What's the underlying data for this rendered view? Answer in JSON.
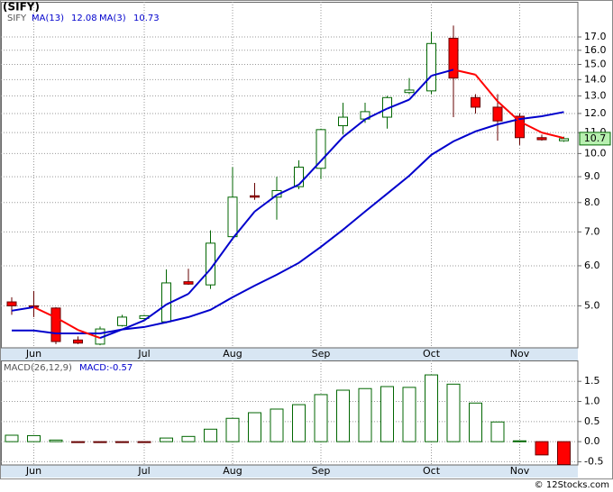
{
  "title": "(SIFY)",
  "credit": "© 12Stocks.com",
  "chart_data": [
    {
      "type": "candlestick",
      "name": "SIFY",
      "categories": [
        null,
        "Jun",
        null,
        null,
        null,
        null,
        "Jul",
        null,
        null,
        null,
        "Aug",
        null,
        null,
        null,
        "Sep",
        null,
        null,
        null,
        null,
        "Oct",
        null,
        null,
        null,
        "Nov",
        null,
        null
      ],
      "open": [
        5.09,
        5.0,
        4.95,
        4.28,
        4.2,
        4.57,
        4.72,
        4.65,
        5.58,
        5.5,
        6.85,
        8.25,
        8.2,
        8.6,
        9.35,
        11.35,
        11.7,
        11.8,
        13.2,
        13.3,
        16.9,
        12.9,
        12.35,
        11.85,
        10.75,
        10.6
      ],
      "high": [
        5.2,
        5.35,
        4.97,
        4.35,
        4.55,
        4.8,
        4.8,
        5.9,
        5.92,
        7.05,
        9.4,
        8.75,
        9.0,
        9.7,
        11.2,
        12.6,
        12.6,
        13.0,
        14.1,
        17.4,
        17.9,
        13.1,
        13.1,
        12.0,
        10.9,
        10.8
      ],
      "low": [
        4.8,
        4.75,
        4.2,
        4.2,
        4.18,
        4.55,
        4.7,
        4.62,
        5.5,
        5.4,
        6.8,
        8.1,
        7.4,
        8.5,
        8.9,
        10.9,
        11.5,
        11.2,
        13.1,
        13.1,
        11.8,
        12.0,
        10.6,
        10.4,
        10.6,
        10.55
      ],
      "close": [
        5.0,
        4.98,
        4.25,
        4.22,
        4.5,
        4.75,
        4.78,
        5.55,
        5.52,
        6.65,
        8.2,
        8.2,
        8.45,
        9.4,
        11.15,
        11.8,
        12.1,
        12.9,
        13.35,
        16.5,
        14.1,
        12.35,
        11.6,
        10.75,
        10.65,
        10.7
      ],
      "up_color": "#ffffff",
      "up_edge": "#006600",
      "down_color": "#ff0000",
      "down_edge": "#660000",
      "series": [
        {
          "name": "MA(13)",
          "color": "#0000cc",
          "values": [
            4.47,
            4.47,
            4.41,
            4.41,
            4.41,
            4.49,
            4.54,
            4.64,
            4.75,
            4.91,
            5.2,
            5.48,
            5.76,
            6.08,
            6.54,
            7.07,
            7.68,
            8.33,
            9.04,
            9.94,
            10.57,
            11.06,
            11.42,
            11.7,
            11.85,
            12.08
          ]
        },
        {
          "name": "MA(3)",
          "up_color": "#0000cc",
          "down_color": "#ff0000",
          "values": [
            4.89,
            4.97,
            4.74,
            4.48,
            4.32,
            4.49,
            4.68,
            5.03,
            5.28,
            5.91,
            6.79,
            7.68,
            8.28,
            8.68,
            9.67,
            10.78,
            11.68,
            12.27,
            12.78,
            14.25,
            14.65,
            14.32,
            12.68,
            11.57,
            11.0,
            10.73
          ]
        }
      ],
      "log_scale": true,
      "grid": true,
      "ylim": [
        4.13,
        19.95
      ],
      "yticks": [
        {
          "value": 5,
          "label": "5.0"
        },
        {
          "value": 6,
          "label": "6.0"
        },
        {
          "value": 7,
          "label": "7.0"
        },
        {
          "value": 8,
          "label": "8.0"
        },
        {
          "value": 9,
          "label": "9.0"
        },
        {
          "value": 10,
          "label": "10.0"
        },
        {
          "value": 11,
          "label": "11.0"
        },
        {
          "value": 12,
          "label": "12.0"
        },
        {
          "value": 13,
          "label": "13.0"
        },
        {
          "value": 14,
          "label": "14.0"
        },
        {
          "value": 15,
          "label": "15.0"
        },
        {
          "value": 16,
          "label": "16.0"
        },
        {
          "value": 17,
          "label": "17.0"
        }
      ]
    },
    {
      "type": "bar",
      "name": "MACD(26,12,9)",
      "value_name": "MACD:",
      "values": [
        0.16,
        0.15,
        0.04,
        -0.02,
        -0.02,
        -0.02,
        -0.02,
        0.09,
        0.13,
        0.31,
        0.58,
        0.72,
        0.81,
        0.92,
        1.17,
        1.28,
        1.32,
        1.37,
        1.35,
        1.66,
        1.43,
        0.96,
        0.49,
        0.02,
        -0.33,
        -0.57
      ],
      "up_color": "#006600",
      "down_color": "#ff0000",
      "grid": true,
      "ylim": [
        -0.58,
        2.02
      ],
      "yticks": [
        -0.5,
        {
          "value": 0,
          "label": "0.0"
        },
        0.5,
        {
          "value": 1,
          "label": "1.0"
        },
        1.5
      ]
    }
  ]
}
